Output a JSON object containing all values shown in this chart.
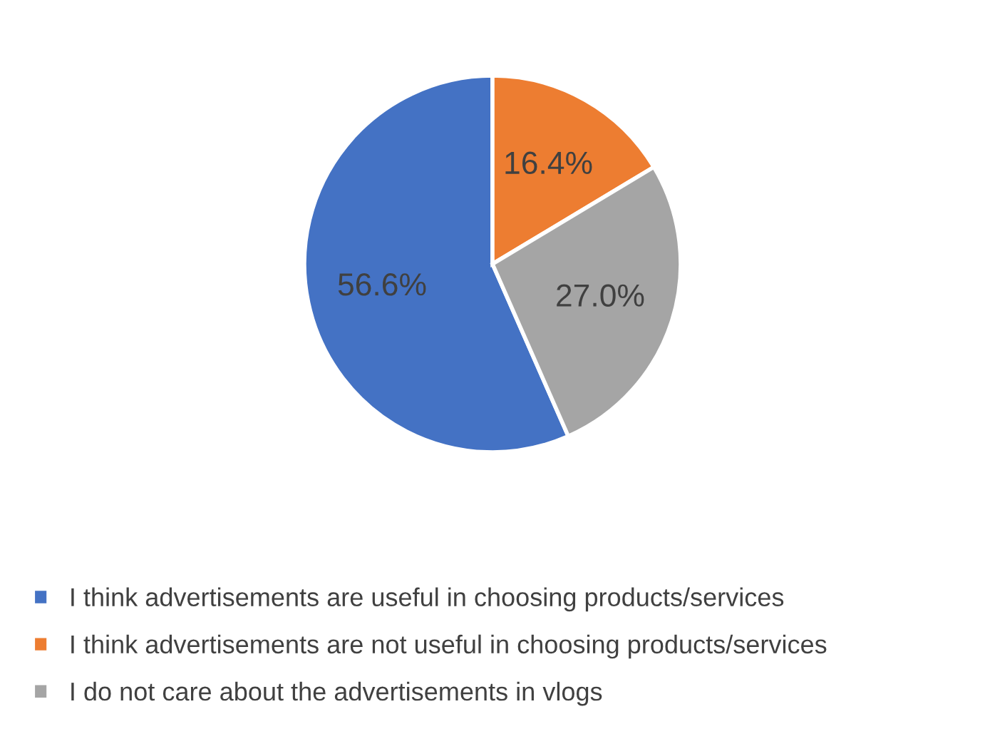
{
  "chart_data": {
    "type": "pie",
    "categories": [
      "I think advertisements are useful in choosing products/services",
      "I think advertisements are not useful in choosing products/services",
      "I do not care about the advertisements in vlogs"
    ],
    "values": [
      56.6,
      16.4,
      27.0
    ],
    "value_labels": [
      "56.6%",
      "16.4%",
      "27.0%"
    ],
    "colors": [
      "#4472c4",
      "#ed7d31",
      "#a5a5a5"
    ],
    "legend": "bottom"
  }
}
